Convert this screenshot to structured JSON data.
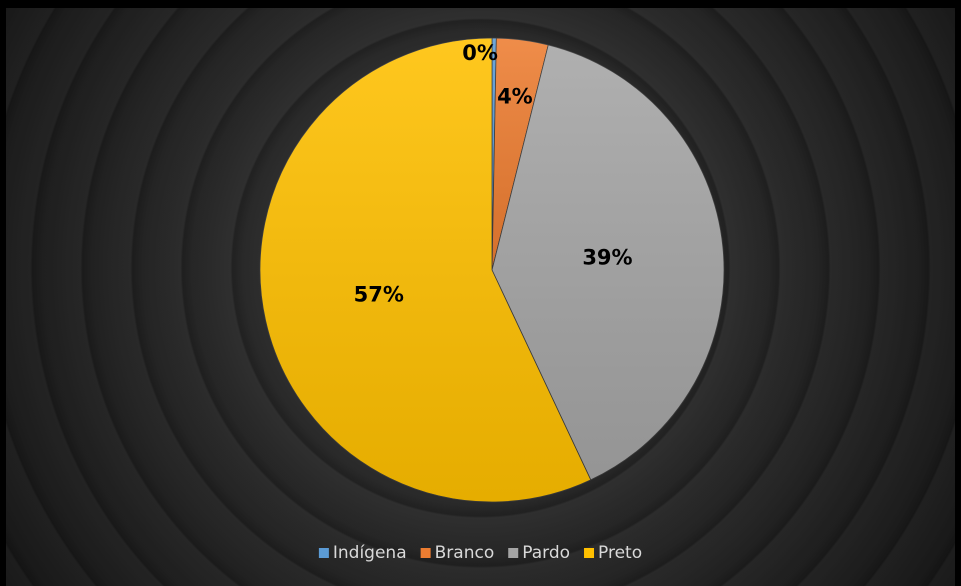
{
  "chart_data": {
    "type": "pie",
    "categories": [
      "Indígena",
      "Branco",
      "Pardo",
      "Preto"
    ],
    "values": [
      0.3,
      3.6,
      39.1,
      57
    ],
    "value_labels": [
      "0%",
      "4%",
      "39%",
      "57%"
    ],
    "colors": [
      "#5b9bd5",
      "#ed7d31",
      "#a5a5a5",
      "#ffc000"
    ],
    "legend": "bottom"
  }
}
